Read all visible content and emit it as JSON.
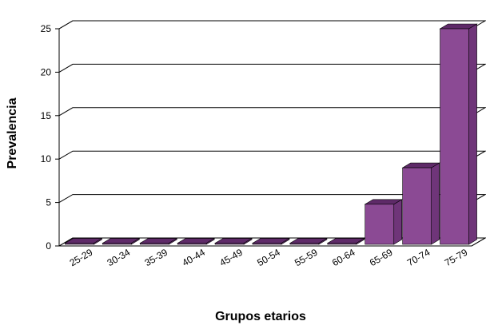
{
  "chart_data": {
    "type": "bar",
    "title": "",
    "xlabel": "Grupos etarios",
    "ylabel": "Prevalencia",
    "ylim": [
      0,
      25
    ],
    "yticks": [
      0,
      5,
      10,
      15,
      20,
      25
    ],
    "grid": true,
    "three_d": true,
    "categories": [
      "25-29",
      "30-34",
      "35-39",
      "40-44",
      "45-49",
      "50-54",
      "55-59",
      "60-64",
      "65-69",
      "70-74",
      "75-79"
    ],
    "values": [
      0,
      0,
      0,
      0,
      0,
      0,
      0,
      0,
      4.8,
      9,
      25
    ],
    "colors": {
      "bar_front": "#8b4a94",
      "bar_top": "#5e2a68",
      "bar_side": "#6f3579",
      "axis": "#000000",
      "grid": "#000000"
    }
  }
}
